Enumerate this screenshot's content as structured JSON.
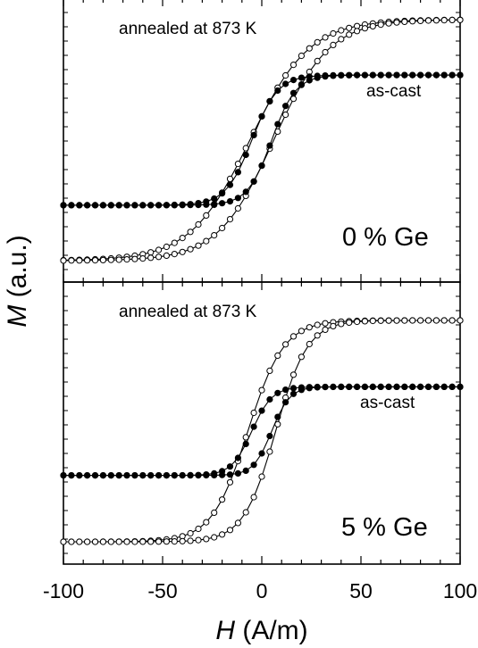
{
  "chart_data": {
    "type": "line",
    "x_axis": {
      "label_italic": "H",
      "label_rest": " (A/m)",
      "range": [
        -100,
        100
      ],
      "ticks": [
        -100,
        -50,
        0,
        50,
        100
      ],
      "tick_labels": [
        "-100",
        "-50",
        "0",
        "50",
        "100"
      ]
    },
    "y_axis": {
      "label_italic": "M",
      "label_rest": " (a.u.)",
      "tick_labels_shown": false
    },
    "panels": [
      {
        "id": "top",
        "label": "0 % Ge",
        "annotations": [
          "annealed at 873 K",
          "as-cast"
        ],
        "series": [
          {
            "sample": "annealed",
            "marker": "open",
            "Ms": 1.0,
            "descending": {
              "x0": -6,
              "w": 30
            },
            "ascending": {
              "x0": 6,
              "w": 28
            }
          },
          {
            "sample": "as-cast",
            "marker": "filled",
            "Ms": 0.54,
            "descending": {
              "x0": -5,
              "w": 13
            },
            "ascending": {
              "x0": 5,
              "w": 12
            }
          }
        ]
      },
      {
        "id": "bottom",
        "label": "5 % Ge",
        "annotations": [
          "annealed at 873 K",
          "as-cast"
        ],
        "series": [
          {
            "sample": "annealed",
            "marker": "open",
            "Ms": 1.0,
            "descending": {
              "x0": -7,
              "w": 18
            },
            "ascending": {
              "x0": 7,
              "w": 16
            }
          },
          {
            "sample": "as-cast",
            "marker": "filled",
            "Ms": 0.4,
            "descending": {
              "x0": -5,
              "w": 10
            },
            "ascending": {
              "x0": 5,
              "w": 9
            }
          }
        ]
      }
    ],
    "grid": false,
    "legend": "none"
  }
}
